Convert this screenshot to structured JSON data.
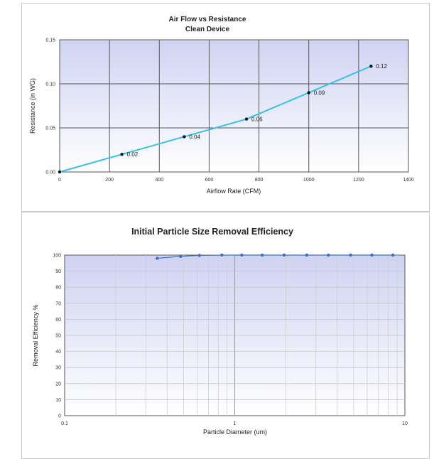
{
  "chart_data": [
    {
      "type": "line",
      "title": "Air Flow vs Resistance",
      "subtitle": "Clean Device",
      "xlabel": "Airflow Rate (CFM)",
      "ylabel": "Resistance (in WG)",
      "xlim": [
        0,
        1400
      ],
      "ylim": [
        0,
        0.15
      ],
      "x_ticks": [
        "0",
        "200",
        "400",
        "600",
        "800",
        "1000",
        "1200",
        "1400"
      ],
      "y_ticks": [
        "0.00",
        "0.05",
        "0.10",
        "0.15"
      ],
      "grid": true,
      "x": [
        0,
        250,
        500,
        750,
        1000,
        1250
      ],
      "series": [
        {
          "values": [
            0,
            0.02,
            0.04,
            0.06,
            0.09,
            0.12
          ],
          "labels": [
            "",
            "0.02",
            "0.04",
            "0.06",
            "0.09",
            "0.12"
          ],
          "color": "#33c3e6"
        }
      ]
    },
    {
      "type": "line",
      "title": "Initial Particle Size Removal Efficiency",
      "xlabel": "Particle Diameter (um)",
      "ylabel": "Removal Efficiency %",
      "xscale": "log",
      "xlim": [
        0.1,
        10
      ],
      "ylim": [
        0,
        100
      ],
      "x_ticks": [
        "0.1",
        "1",
        "10"
      ],
      "y_ticks": [
        "0",
        "10",
        "20",
        "30",
        "40",
        "50",
        "60",
        "70",
        "80",
        "90",
        "100"
      ],
      "grid": true,
      "x": [
        0.35,
        0.48,
        0.62,
        0.84,
        1.1,
        1.45,
        1.95,
        2.65,
        3.55,
        4.8,
        6.4,
        8.5
      ],
      "series": [
        {
          "values": [
            98,
            99.2,
            99.8,
            100,
            100,
            100,
            100,
            100,
            100,
            100,
            100,
            100
          ],
          "color": "#3a6fc4"
        }
      ]
    }
  ]
}
